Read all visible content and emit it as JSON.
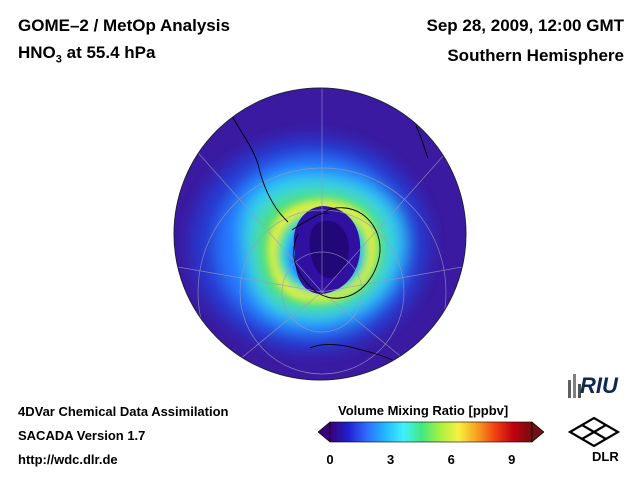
{
  "header": {
    "analysis": "GOME–2 / MetOp Analysis",
    "species_prefix": "HNO",
    "species_subscript": "3",
    "species_suffix": " at 55.4 hPa",
    "datetime": "Sep 28, 2009, 12:00 GMT",
    "hemisphere": "Southern Hemisphere"
  },
  "footer": {
    "line1": "4DVar Chemical Data Assimilation",
    "line2": "SACADA Version 1.7",
    "line3": "http://wdc.dlr.de"
  },
  "colorbar": {
    "title": "Volume Mixing Ratio [ppbv]",
    "ticks": [
      "0",
      "3",
      "6",
      "9"
    ],
    "min": 0,
    "max": 10,
    "colors": [
      "#3a0078",
      "#2020d0",
      "#2f6cff",
      "#20b8ff",
      "#40f0ff",
      "#40e880",
      "#a8f040",
      "#f8f040",
      "#f8a020",
      "#f04010",
      "#c00010",
      "#701010"
    ]
  },
  "map": {
    "field_colors": {
      "background": "#3a1aa0",
      "outer_band": "#2838d0",
      "mid_band": "#2878ff",
      "cyan": "#30d0f0",
      "green": "#50e070",
      "yellow": "#e8f040",
      "vortex_core": "#3010a0",
      "vortex_deep": "#200878"
    }
  },
  "logos": {
    "riu": "RIU",
    "dlr": "DLR"
  }
}
